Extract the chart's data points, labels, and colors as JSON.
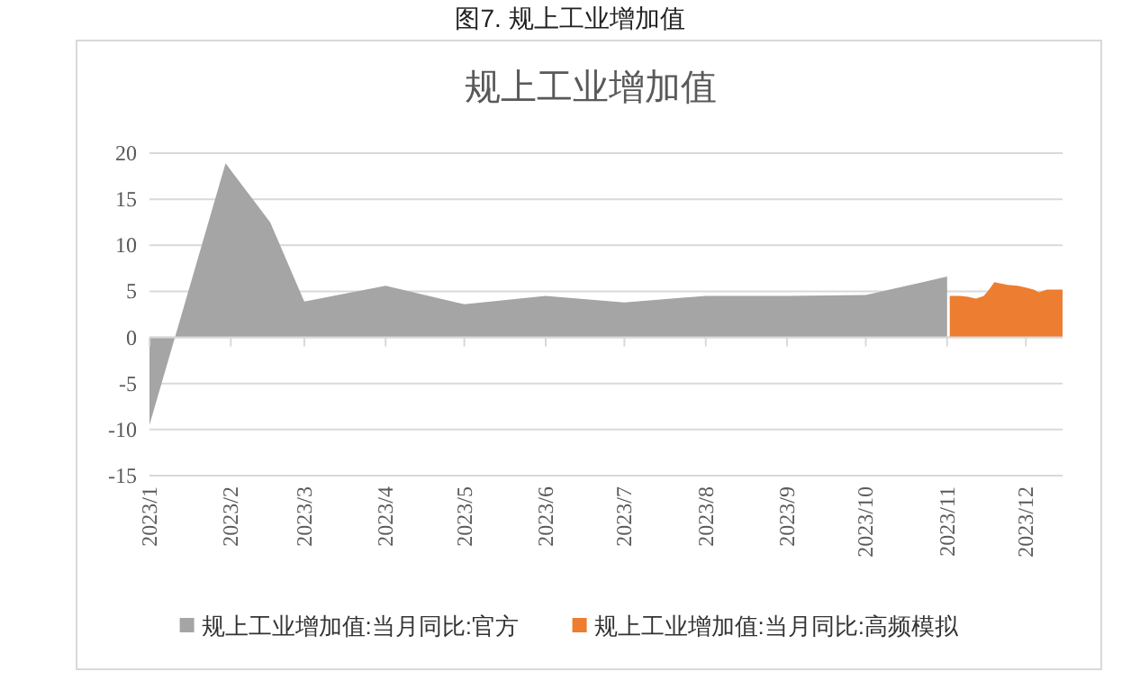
{
  "chart_data": {
    "type": "area",
    "title": "图7. 规上工业增加值",
    "subtitle": "规上工业增加值",
    "series": [
      {
        "name": "规上工业增加值:当月同比:官方",
        "color": "#a5a5a5",
        "x": [
          "2023-01-01",
          "2023-01-30",
          "2023-02-16",
          "2023-03-01",
          "2023-04-01",
          "2023-05-01",
          "2023-06-01",
          "2023-07-01",
          "2023-08-01",
          "2023-09-01",
          "2023-10-01",
          "2023-11-01"
        ],
        "values": [
          -9.5,
          18.9,
          12.5,
          3.9,
          5.6,
          3.6,
          4.5,
          3.8,
          4.5,
          4.5,
          4.6,
          6.6
        ]
      },
      {
        "name": "规上工业增加值:当月同比:高频模拟",
        "color": "#ed7d31",
        "x": [
          "2023-11-02",
          "2023-11-06",
          "2023-11-09",
          "2023-11-12",
          "2023-11-15",
          "2023-11-17",
          "2023-11-19",
          "2023-11-24",
          "2023-11-28",
          "2023-12-01",
          "2023-12-04",
          "2023-12-06",
          "2023-12-09",
          "2023-12-15"
        ],
        "values": [
          4.5,
          4.5,
          4.4,
          4.2,
          4.5,
          5.2,
          6.0,
          5.7,
          5.6,
          5.4,
          5.2,
          4.9,
          5.2,
          5.2
        ]
      }
    ],
    "xlim": [
      "2023-01-01",
      "2023-12-15"
    ],
    "xticks": [
      {
        "value": "2023-01-01",
        "label": "2023/1"
      },
      {
        "value": "2023-02-01",
        "label": "2023/2"
      },
      {
        "value": "2023-03-01",
        "label": "2023/3"
      },
      {
        "value": "2023-04-01",
        "label": "2023/4"
      },
      {
        "value": "2023-05-01",
        "label": "2023/5"
      },
      {
        "value": "2023-06-01",
        "label": "2023/6"
      },
      {
        "value": "2023-07-01",
        "label": "2023/7"
      },
      {
        "value": "2023-08-01",
        "label": "2023/8"
      },
      {
        "value": "2023-09-01",
        "label": "2023/9"
      },
      {
        "value": "2023-10-01",
        "label": "2023/10"
      },
      {
        "value": "2023-11-01",
        "label": "2023/11"
      },
      {
        "value": "2023-12-01",
        "label": "2023/12"
      }
    ],
    "ylim": [
      -15,
      20
    ],
    "yticks": [
      -15,
      -10,
      -5,
      0,
      5,
      10,
      15,
      20
    ],
    "grid": "y",
    "legend": "bottom"
  }
}
